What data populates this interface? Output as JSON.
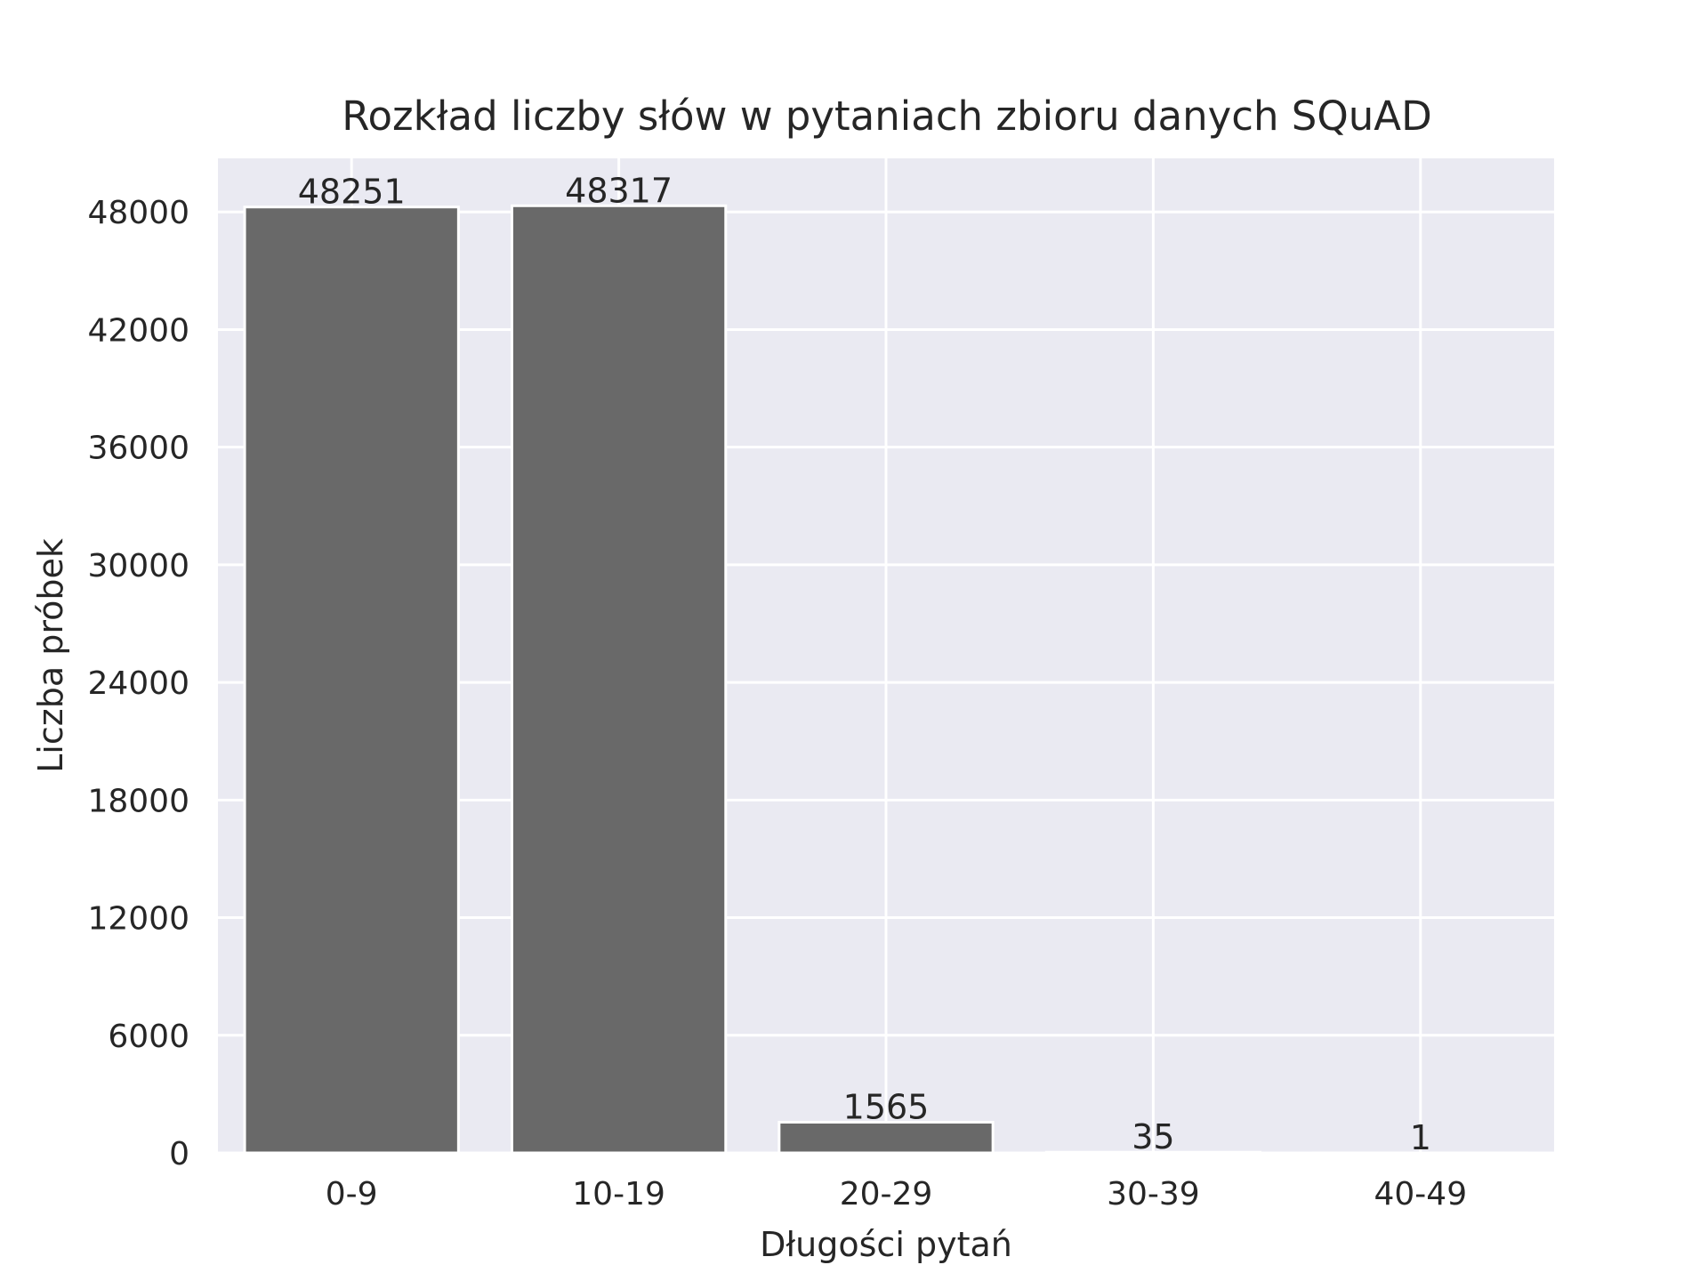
{
  "chart_data": {
    "type": "bar",
    "title": "Rozkład liczby słów w pytaniach zbioru danych SQuAD",
    "xlabel": "Długości pytań",
    "ylabel": "Liczba próbek",
    "categories": [
      "0-9",
      "10-19",
      "20-29",
      "30-39",
      "40-49"
    ],
    "values": [
      48251,
      48317,
      1565,
      35,
      1
    ],
    "data_labels": [
      "48251",
      "48317",
      "1565",
      "35",
      "1"
    ],
    "yticks": [
      0,
      6000,
      12000,
      18000,
      24000,
      30000,
      36000,
      42000,
      48000
    ],
    "ylim": [
      0,
      50734
    ],
    "grid": true,
    "bar_color": "#696969",
    "background_color": "#eaeaf2"
  }
}
